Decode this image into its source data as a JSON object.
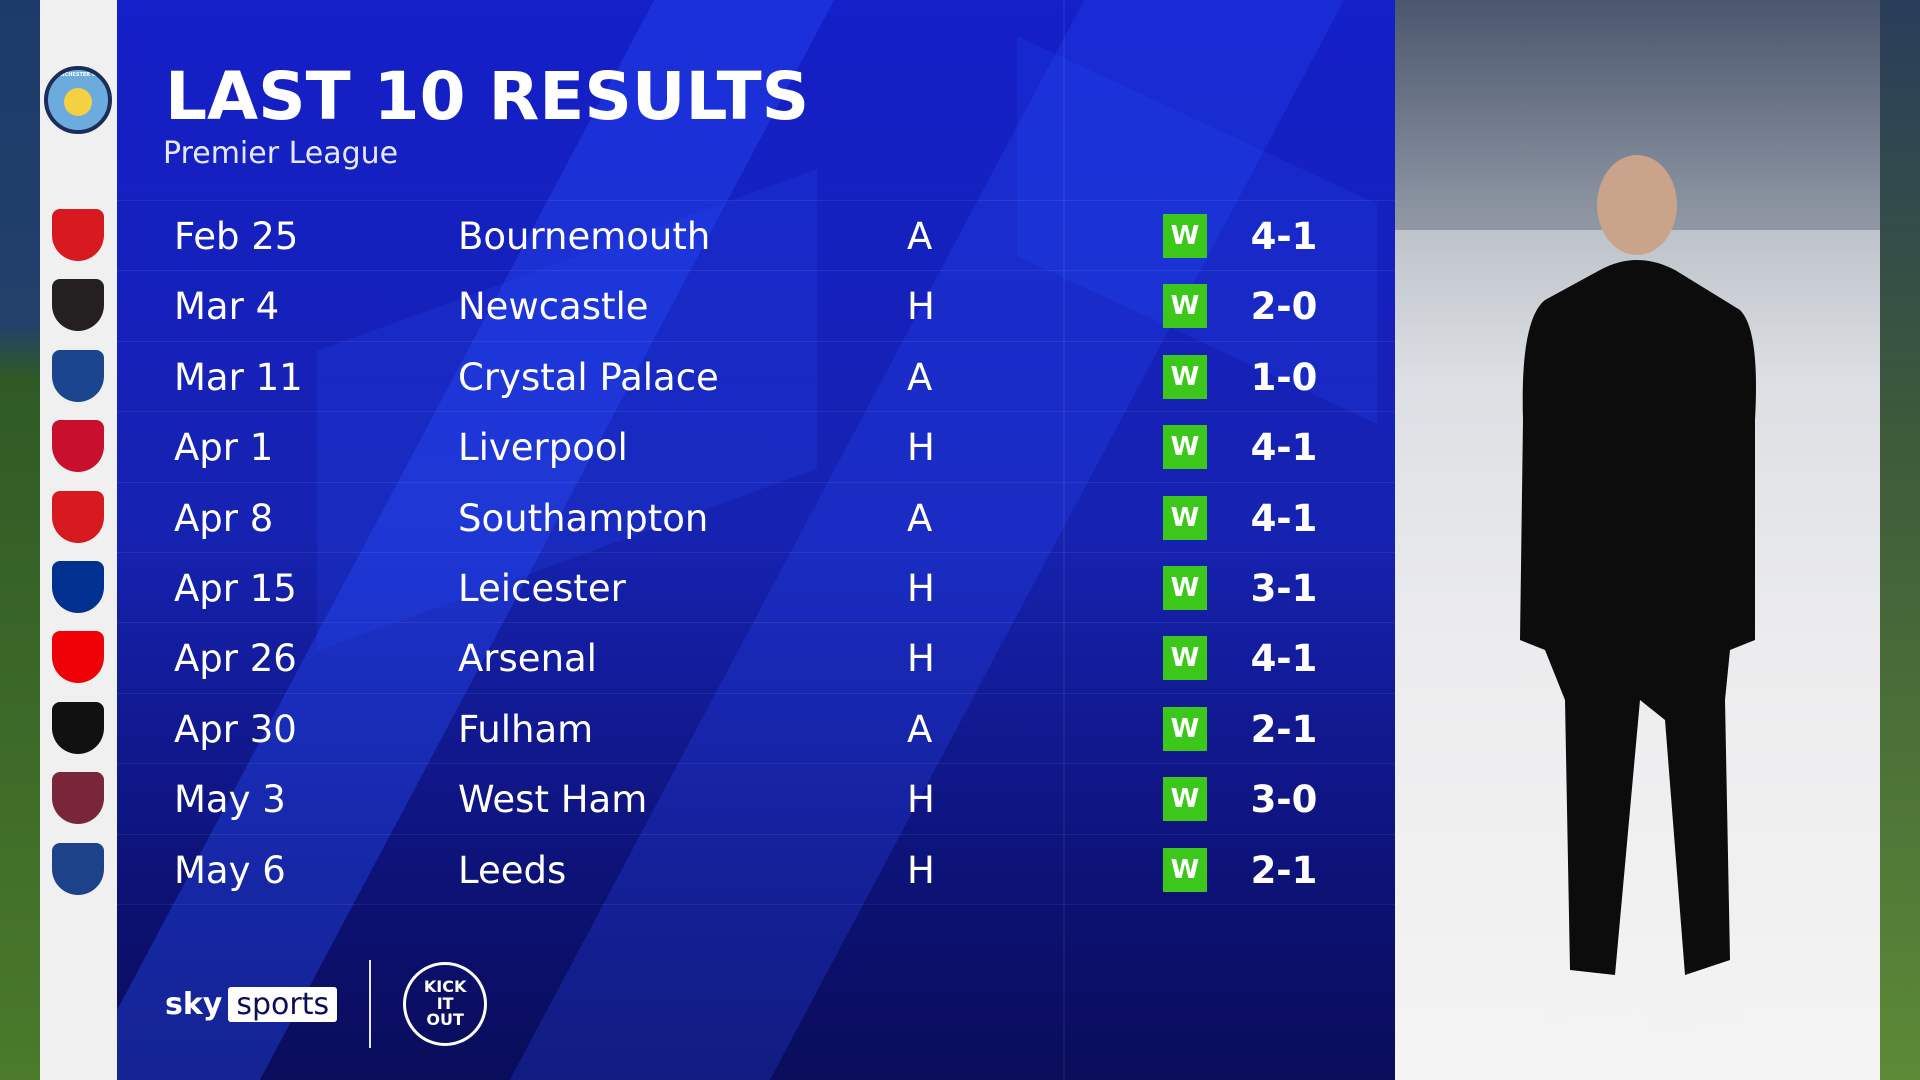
{
  "header": {
    "title": "LAST 10 RESULTS",
    "subtitle": "Premier League"
  },
  "team": {
    "name": "Manchester City",
    "crest_icon": "man-city-crest"
  },
  "colors": {
    "panel": "#1420c8",
    "win_badge": "#3cc81a",
    "text": "#ffffff"
  },
  "results": [
    {
      "date": "Feb 25",
      "opponent": "Bournemouth",
      "venue": "A",
      "result": "W",
      "score": "4-1",
      "crest_color": "#d71920"
    },
    {
      "date": "Mar 4",
      "opponent": "Newcastle",
      "venue": "H",
      "result": "W",
      "score": "2-0",
      "crest_color": "#241f20"
    },
    {
      "date": "Mar 11",
      "opponent": "Crystal Palace",
      "venue": "A",
      "result": "W",
      "score": "1-0",
      "crest_color": "#1b458f"
    },
    {
      "date": "Apr 1",
      "opponent": "Liverpool",
      "venue": "H",
      "result": "W",
      "score": "4-1",
      "crest_color": "#c8102e"
    },
    {
      "date": "Apr 8",
      "opponent": "Southampton",
      "venue": "A",
      "result": "W",
      "score": "4-1",
      "crest_color": "#d71920"
    },
    {
      "date": "Apr 15",
      "opponent": "Leicester",
      "venue": "H",
      "result": "W",
      "score": "3-1",
      "crest_color": "#003090"
    },
    {
      "date": "Apr 26",
      "opponent": "Arsenal",
      "venue": "H",
      "result": "W",
      "score": "4-1",
      "crest_color": "#ef0107"
    },
    {
      "date": "Apr 30",
      "opponent": "Fulham",
      "venue": "A",
      "result": "W",
      "score": "2-1",
      "crest_color": "#111111"
    },
    {
      "date": "May 3",
      "opponent": "West Ham",
      "venue": "H",
      "result": "W",
      "score": "3-0",
      "crest_color": "#7a263a"
    },
    {
      "date": "May 6",
      "opponent": "Leeds",
      "venue": "H",
      "result": "W",
      "score": "2-1",
      "crest_color": "#1d428a"
    }
  ],
  "footer": {
    "sky": "sky",
    "sports": "sports",
    "kick_it_out": "KICK IT OUT"
  }
}
